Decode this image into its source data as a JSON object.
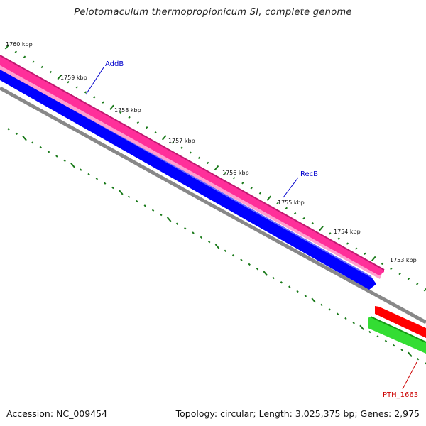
{
  "title": "Pelotomaculum thermopropionicum SI, complete genome",
  "footer": {
    "accession": "Accession: NC_009454",
    "summary": "Topology: circular; Length: 3,025,375 bp; Genes: 2,975"
  },
  "ticks": [
    "1760 kbp",
    "1759 kbp",
    "1758 kbp",
    "1757 kbp",
    "1756 kbp",
    "1755 kbp",
    "1754 kbp",
    "1753 kbp"
  ],
  "genes": [
    {
      "name": "AddB",
      "color": "#0000cc"
    },
    {
      "name": "RecB",
      "color": "#0000cc"
    },
    {
      "name": "PTH_1663",
      "color": "#cc0000"
    }
  ],
  "colors": {
    "pink_track": "#ff2f9a",
    "blue_track": "#0000ff",
    "grey_line": "#777777",
    "red_track": "#ff0000",
    "green_track": "#33dd33",
    "tick_green": "#1a7a1a"
  }
}
